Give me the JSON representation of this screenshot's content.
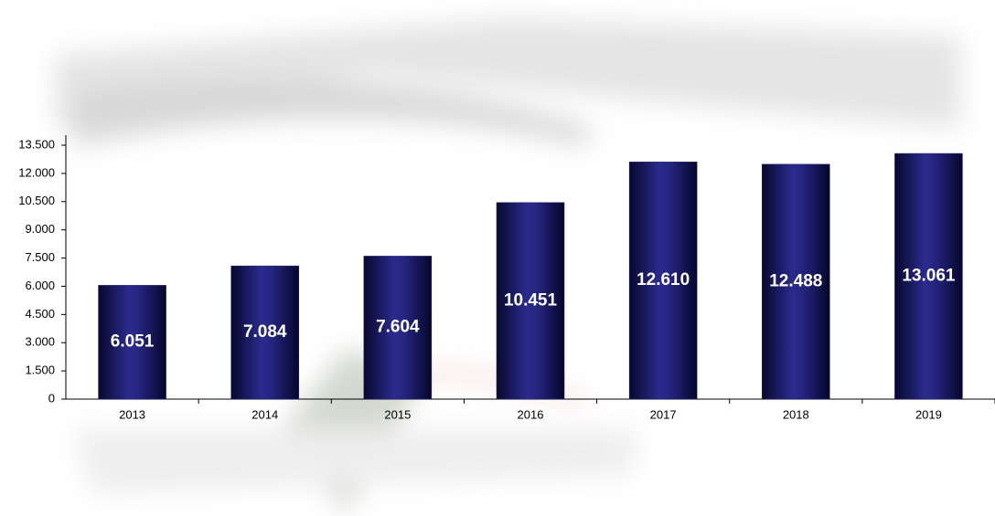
{
  "chart_data": {
    "type": "bar",
    "categories": [
      "2013",
      "2014",
      "2015",
      "2016",
      "2017",
      "2018",
      "2019"
    ],
    "values": [
      6051,
      7084,
      7604,
      10451,
      12610,
      12488,
      13061
    ],
    "value_labels": [
      "6.051",
      "7.084",
      "7.604",
      "10.451",
      "12.610",
      "12.488",
      "13.061"
    ],
    "color": "#1f1f75",
    "ylim": [
      0,
      13500
    ],
    "yticks": [
      0,
      {
        "value": 1500,
        "label": "1.500"
      },
      {
        "value": 3000,
        "label": "3.000"
      },
      {
        "value": 4500,
        "label": "4.500"
      },
      {
        "value": 6000,
        "label": "6.000"
      },
      {
        "value": 7500,
        "label": "7.500"
      },
      {
        "value": 9000,
        "label": "9.000"
      },
      {
        "value": 10500,
        "label": "10.500"
      },
      {
        "value": 12000,
        "label": "12.000"
      },
      {
        "value": 13500,
        "label": "13.500"
      }
    ],
    "grid": false
  }
}
